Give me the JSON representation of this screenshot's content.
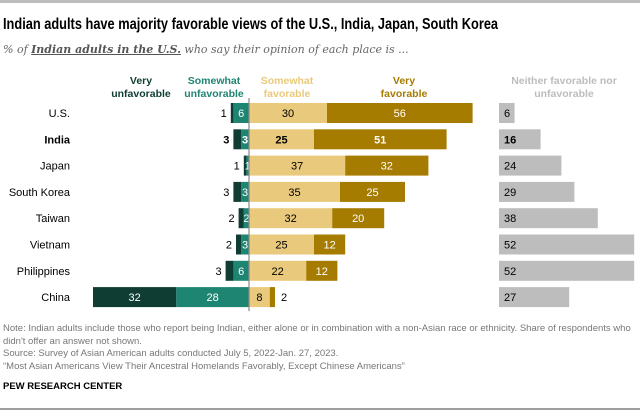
{
  "title": "Indian adults have majority favorable views of the U.S., India, Japan, South Korea",
  "subtitle": {
    "prefix": "% of ",
    "group": "Indian adults in the U.S.",
    "suffix": " who say their opinion of each place is ..."
  },
  "chart_data": {
    "type": "bar",
    "orientation": "horizontal",
    "stacked": "diverging",
    "categories": [
      "U.S.",
      "India",
      "Japan",
      "South Korea",
      "Taiwan",
      "Vietnam",
      "Philippines",
      "China"
    ],
    "highlight_category": "India",
    "series": [
      {
        "name": "Very unfavorable",
        "legend": [
          "Very",
          "unfavorable"
        ],
        "color": "#0f3d33",
        "side": "left",
        "values": [
          1,
          3,
          1,
          3,
          2,
          2,
          3,
          32
        ]
      },
      {
        "name": "Somewhat unfavorable",
        "legend": [
          "Somewhat",
          "unfavorable"
        ],
        "color": "#1f8573",
        "side": "left",
        "values": [
          6,
          3,
          1,
          3,
          2,
          3,
          6,
          28
        ]
      },
      {
        "name": "Somewhat favorable",
        "legend": [
          "Somewhat",
          "favorable"
        ],
        "color": "#e9c97b",
        "side": "right",
        "values": [
          30,
          25,
          37,
          35,
          32,
          25,
          22,
          8
        ]
      },
      {
        "name": "Very favorable",
        "legend": [
          "Very",
          "favorable"
        ],
        "color": "#a67c00",
        "side": "right",
        "values": [
          56,
          51,
          32,
          25,
          20,
          12,
          12,
          2
        ]
      },
      {
        "name": "Neither favorable nor unfavorable",
        "legend": [
          "Neither favorable nor",
          "unfavorable"
        ],
        "color": "#bdbdbd",
        "side": "separate",
        "values": [
          6,
          16,
          24,
          29,
          38,
          52,
          52,
          27
        ]
      }
    ],
    "xlim": [
      0,
      100
    ],
    "grid": false
  },
  "notes": [
    "Note: Indian adults include those who report being Indian, either alone or in combination with a non-Asian race or ethnicity. Share of respondents who didn't offer an answer not shown.",
    "Source: Survey of Asian American adults conducted July 5, 2022-Jan. 27, 2023.",
    "“Most Asian Americans View Their Ancestral Homelands Favorably, Except Chinese Americans”"
  ],
  "footer": "PEW RESEARCH CENTER"
}
